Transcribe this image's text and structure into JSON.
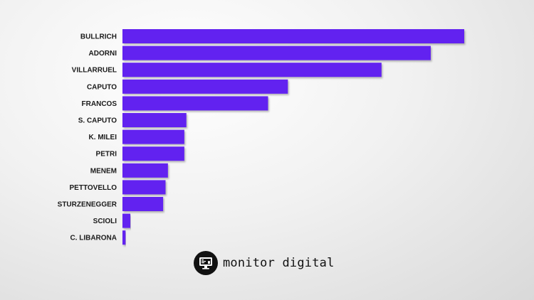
{
  "chart_data": {
    "type": "bar",
    "orientation": "horizontal",
    "categories": [
      "BULLRICH",
      "ADORNI",
      "VILLARRUEL",
      "CAPUTO",
      "FRANCOS",
      "S. CAPUTO",
      "K. MILEI",
      "PETRI",
      "MENEM",
      "PETTOVELLO",
      "STURZENEGGER",
      "SCIOLI",
      "C. LIBARONA"
    ],
    "values": [
      100,
      90.2,
      75.8,
      48.4,
      42.6,
      18.7,
      18.1,
      18.1,
      13.3,
      12.6,
      11.9,
      2.3,
      0.9
    ],
    "xlim": [
      0,
      100
    ],
    "bar_color": "#6222f0",
    "axis_visible": false,
    "grid": false,
    "legend": "none"
  },
  "brand": {
    "name": "monitor digital",
    "icon": "monitor-icon"
  }
}
